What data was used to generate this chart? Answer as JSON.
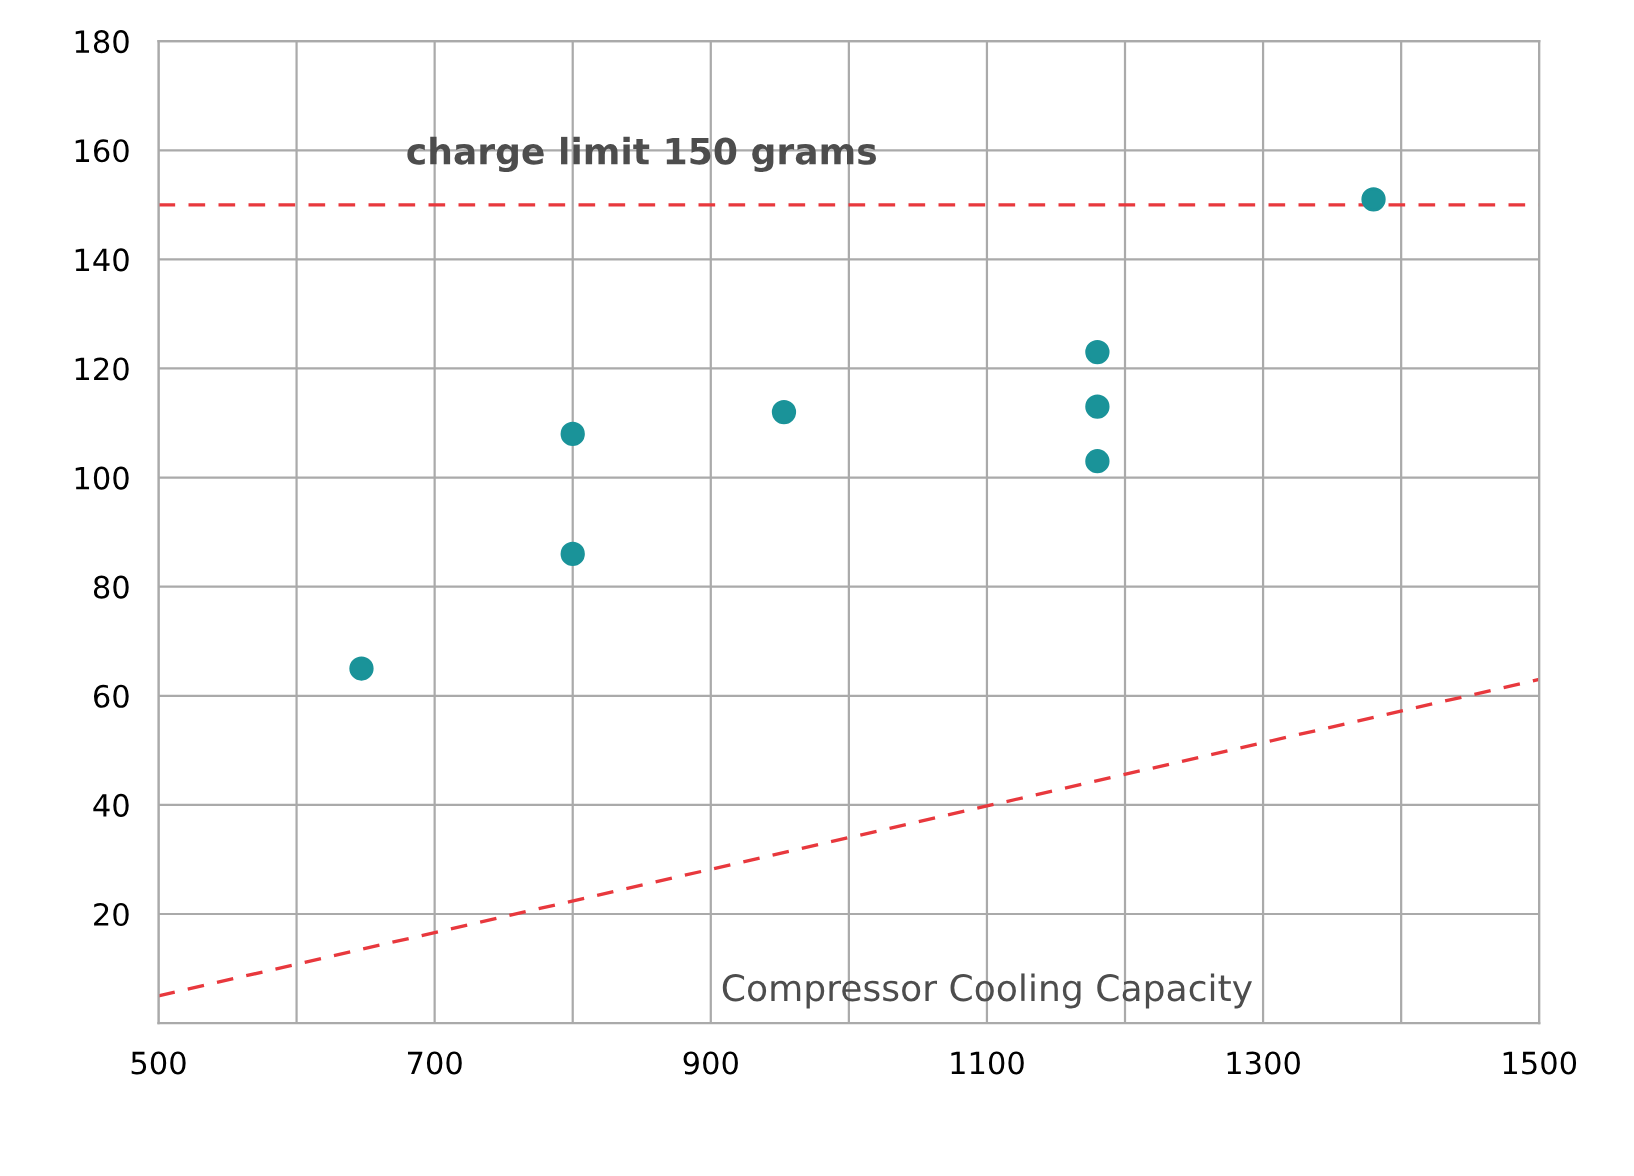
{
  "chart_data": {
    "type": "scatter",
    "xlabel": "Compressor Cooling Capacity",
    "xlim": [
      500,
      1500
    ],
    "ylim": [
      0,
      180
    ],
    "xticks": [
      500,
      {
        "value": 600,
        "label": null
      },
      700,
      {
        "value": 800,
        "label": null
      },
      900,
      {
        "value": 1000,
        "label": null
      },
      1100,
      {
        "value": 1200,
        "label": null
      },
      1300,
      {
        "value": 1400,
        "label": null
      },
      1500
    ],
    "yticks": [
      20,
      40,
      60,
      80,
      100,
      120,
      140,
      160,
      180
    ],
    "grid": true,
    "marker": "circle",
    "series": [
      {
        "color": "#1a9399",
        "x": [
          647,
          800,
          800,
          953,
          1180,
          1180,
          1180,
          1380
        ],
        "values": [
          65,
          108,
          86,
          112,
          123,
          113,
          103,
          151
        ]
      },
      {
        "type": "line",
        "color": "#e8383d",
        "line_style": "dashed",
        "marker": "none",
        "x": [
          500,
          1500
        ],
        "values": [
          5,
          63
        ]
      }
    ],
    "ref_lines": [
      {
        "axis": "y",
        "value": 150,
        "label": "charge limit 150 grams",
        "color": "#e8383d",
        "line_style": "dashed"
      }
    ]
  }
}
